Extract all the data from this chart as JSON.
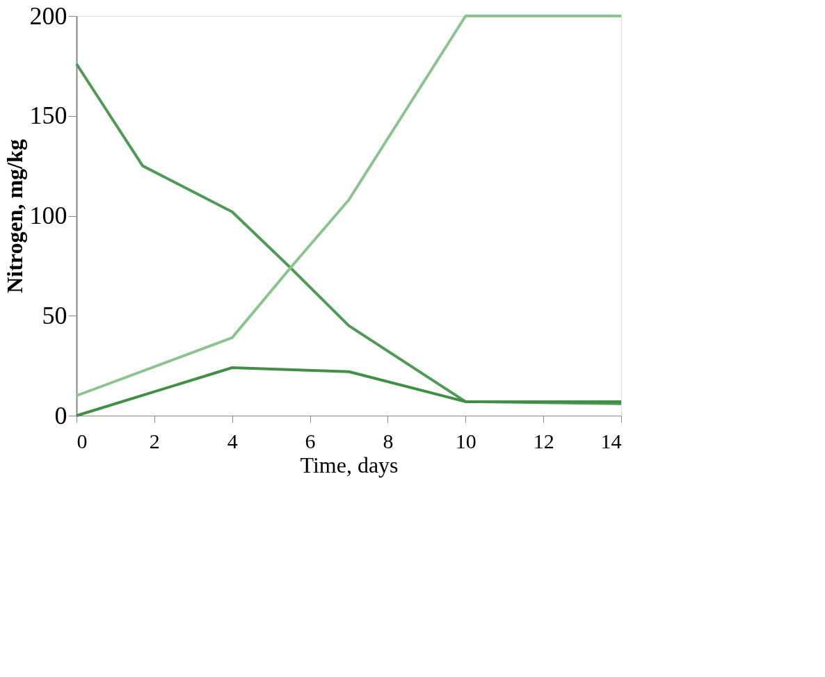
{
  "chart_data": {
    "type": "line",
    "xlabel": "Time, days",
    "ylabel": "Nitrogen, mg/kg",
    "xlim": [
      0,
      14
    ],
    "xticks": [
      0,
      2,
      4,
      6,
      8,
      10,
      12,
      14
    ],
    "ylim": [
      0,
      200
    ],
    "yticks": [
      0,
      50,
      100,
      150,
      200
    ],
    "grid": false,
    "legend": false,
    "marker": "none",
    "line_style": "solid",
    "series": [
      {
        "color": "#4f9a55",
        "x": [
          0,
          1.7,
          4,
          5.5,
          7,
          10,
          14
        ],
        "values": [
          176,
          125,
          102,
          74,
          45,
          7,
          6
        ]
      },
      {
        "color": "#8cc48f",
        "x": [
          0,
          4,
          5.5,
          7,
          10,
          14
        ],
        "values": [
          10,
          39,
          74,
          108,
          200,
          200
        ]
      },
      {
        "color": "#3f8f45",
        "x": [
          0,
          4,
          7,
          10,
          14
        ],
        "values": [
          0,
          24,
          22,
          7,
          7
        ]
      }
    ]
  }
}
